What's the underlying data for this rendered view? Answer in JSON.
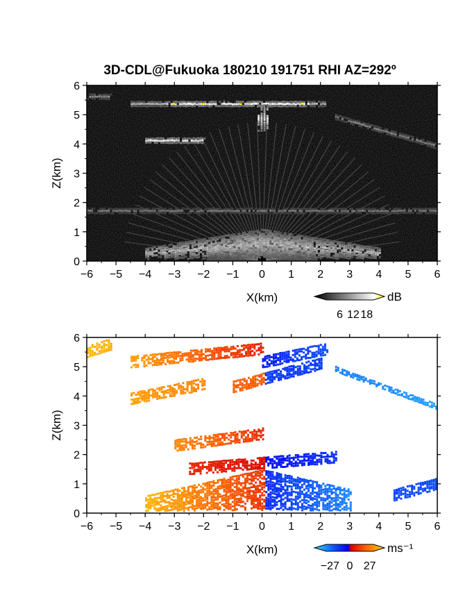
{
  "figure_title": "3D-CDL@Fukuoka 180210 191751 RHI AZ=292º",
  "chart_data": [
    {
      "type": "heatmap",
      "panel": "reflectivity",
      "xlabel": "X(km)",
      "ylabel": "Z(km)",
      "xlim": [
        -6,
        6
      ],
      "ylim": [
        0,
        6
      ],
      "xticks": [
        -6,
        -5,
        -4,
        -3,
        -2,
        -1,
        0,
        1,
        2,
        3,
        4,
        5,
        6
      ],
      "yticks": [
        0,
        1,
        2,
        3,
        4,
        5,
        6
      ],
      "colorbar": {
        "unit": "dB",
        "ticks": [
          6,
          12,
          18
        ],
        "range": [
          0,
          21
        ]
      },
      "features": [
        {
          "name": "upper layer",
          "x": [
            -4.5,
            2.2
          ],
          "z": 5.35,
          "max_dB": 18
        },
        {
          "name": "fall streak",
          "x": [
            -0.15,
            0.15
          ],
          "z": [
            4.45,
            5.35
          ],
          "max_dB": 18
        },
        {
          "name": "mid layer",
          "x": [
            -4.0,
            -2.0
          ],
          "z": 4.1,
          "max_dB": 18
        },
        {
          "name": "left edge layer",
          "x": [
            -6.0,
            -5.2
          ],
          "z": 5.6,
          "max_dB": 10
        },
        {
          "name": "descending layer",
          "x": [
            2.5,
            6.0
          ],
          "z": [
            4.9,
            3.9
          ],
          "max_dB": 9
        },
        {
          "name": "low layer",
          "x": [
            -6.0,
            6.0
          ],
          "z": 1.7,
          "max_dB": 8
        },
        {
          "name": "near-ground clutter",
          "x": [
            -4.0,
            4.0
          ],
          "z": [
            0.0,
            1.0
          ],
          "max_dB": 14
        }
      ]
    },
    {
      "type": "heatmap",
      "panel": "doppler velocity",
      "xlabel": "X(km)",
      "ylabel": "Z(km)",
      "xlim": [
        -6,
        6
      ],
      "ylim": [
        0,
        6
      ],
      "xticks": [
        -6,
        -5,
        -4,
        -3,
        -2,
        -1,
        0,
        1,
        2,
        3,
        4,
        5,
        6
      ],
      "yticks": [
        0,
        1,
        2,
        3,
        4,
        5,
        6
      ],
      "colorbar": {
        "unit": "ms⁻¹",
        "ticks": [
          -27,
          0,
          27
        ],
        "range": [
          -32,
          32
        ]
      },
      "features": [
        {
          "name": "upper layer west",
          "x": [
            -4.5,
            0.0
          ],
          "z": [
            5.15,
            5.6
          ],
          "v": [
            24,
            5
          ]
        },
        {
          "name": "upper layer east",
          "x": [
            0.0,
            2.2
          ],
          "z": [
            5.15,
            5.6
          ],
          "v": [
            -5,
            -14
          ]
        },
        {
          "name": "fall streak",
          "x": [
            -1.0,
            2.0
          ],
          "z": [
            4.3,
            5.1
          ],
          "v": [
            -10,
            8
          ]
        },
        {
          "name": "mid layer",
          "x": [
            -4.5,
            -2.0
          ],
          "z": [
            3.9,
            4.4
          ],
          "v": [
            24,
            20
          ]
        },
        {
          "name": "left edge layer",
          "x": [
            -6.0,
            -5.2
          ],
          "z": [
            5.5,
            5.75
          ],
          "v": [
            27,
            27
          ]
        },
        {
          "name": "descending layer",
          "x": [
            2.5,
            6.0
          ],
          "z": [
            4.9,
            3.6
          ],
          "v": [
            -20,
            -24
          ]
        },
        {
          "name": "mid-low patches",
          "x": [
            -3.0,
            0.0
          ],
          "z": [
            2.3,
            2.7
          ],
          "v": [
            18,
            8
          ]
        },
        {
          "name": "low layer",
          "x": [
            -2.5,
            2.5
          ],
          "z": [
            1.5,
            1.9
          ],
          "v": [
            6,
            -6
          ]
        },
        {
          "name": "near-ground flow",
          "x": [
            -4.0,
            3.0
          ],
          "z": [
            0.0,
            1.4
          ],
          "v": [
            20,
            -14
          ]
        },
        {
          "name": "far east patch",
          "x": [
            4.5,
            6.0
          ],
          "z": [
            0.6,
            1.0
          ],
          "v": [
            -12,
            -12
          ]
        }
      ]
    }
  ]
}
